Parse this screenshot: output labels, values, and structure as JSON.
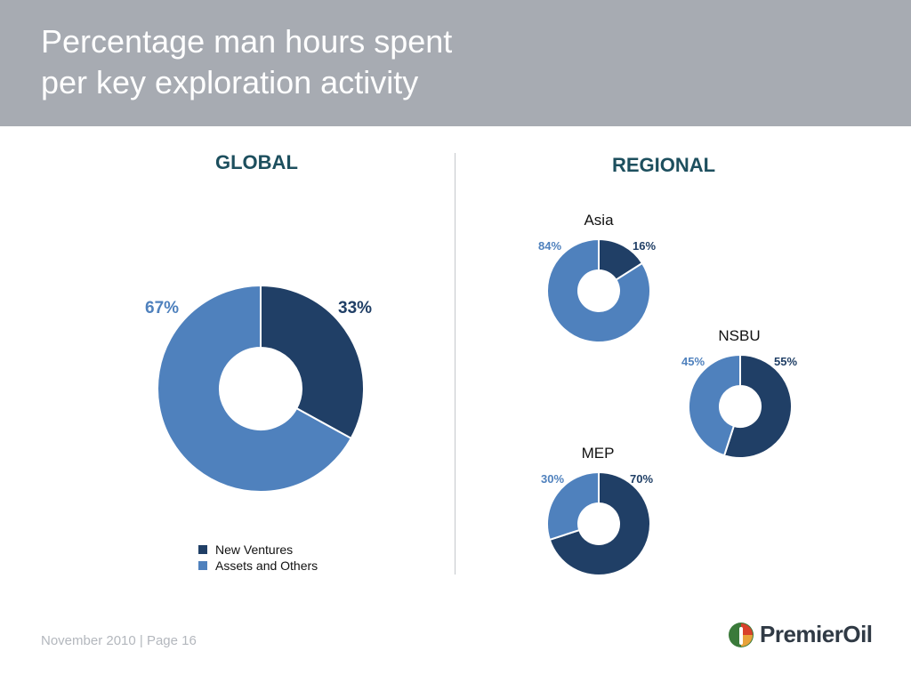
{
  "header": {
    "title_line1": "Percentage man hours spent",
    "title_line2": "per key exploration activity"
  },
  "colors": {
    "new_ventures": "#203f66",
    "assets_and_others": "#4f81bd",
    "header_bg": "#a7abb2",
    "section_title": "#1d4f5e"
  },
  "sections": {
    "global": "GLOBAL",
    "regional": "REGIONAL"
  },
  "chart_data": [
    {
      "type": "pie",
      "title": "GLOBAL",
      "donut": true,
      "labels": [
        "New Ventures",
        "Assets and Others"
      ],
      "values": [
        33,
        67
      ],
      "value_labels": [
        "33%",
        "67%"
      ]
    },
    {
      "type": "pie",
      "title": "Asia",
      "donut": true,
      "labels": [
        "New Ventures",
        "Assets and Others"
      ],
      "values": [
        16,
        84
      ],
      "value_labels": [
        "16%",
        "84%"
      ]
    },
    {
      "type": "pie",
      "title": "NSBU",
      "donut": true,
      "labels": [
        "New Ventures",
        "Assets and Others"
      ],
      "values": [
        55,
        45
      ],
      "value_labels": [
        "55%",
        "45%"
      ]
    },
    {
      "type": "pie",
      "title": "MEP",
      "donut": true,
      "labels": [
        "New Ventures",
        "Assets and Others"
      ],
      "values": [
        70,
        30
      ],
      "value_labels": [
        "70%",
        "30%"
      ]
    }
  ],
  "legend": {
    "items": [
      "New Ventures",
      "Assets and Others"
    ]
  },
  "footer": {
    "date_page": "November 2010 | Page 16",
    "logo_text": "PremierOil",
    "logo_icon": "premier-oil-drop-icon"
  }
}
